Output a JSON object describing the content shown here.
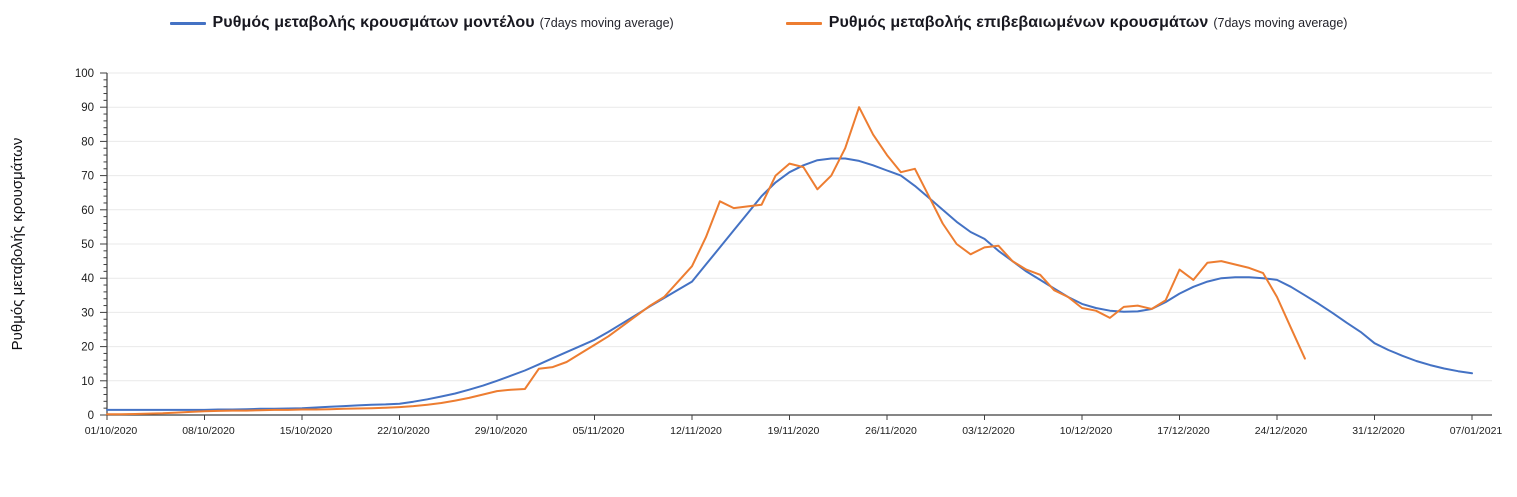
{
  "page": {
    "background": "#ffffff"
  },
  "legend": {
    "items": [
      {
        "label": "Ρυθμός μεταβολής κρουσμάτων μοντέλου",
        "suffix": "(7days moving average)",
        "color": "#4472C4"
      },
      {
        "label": "Ρυθμός μεταβολής επιβεβαιωμένων κρουσμάτων",
        "suffix": "(7days moving average)",
        "color": "#ED7D31"
      }
    ]
  },
  "chart_data": {
    "type": "line",
    "title": "",
    "xlabel": "",
    "ylabel": "Ρυθμός μεταβολής κρουσμάτων",
    "ylim": [
      0,
      100
    ],
    "y_major_step": 10,
    "y_minor_step": 2,
    "grid": "horizontal-major-only",
    "legend_position": "top-center",
    "y_tick_labels": [
      "0",
      "10",
      "20",
      "30",
      "40",
      "50",
      "60",
      "70",
      "80",
      "90",
      "100"
    ],
    "x_tick_labels": [
      "01/10/2020",
      "08/10/2020",
      "15/10/2020",
      "22/10/2020",
      "29/10/2020",
      "05/11/2020",
      "12/11/2020",
      "19/11/2020",
      "26/11/2020",
      "03/12/2020",
      "10/12/2020",
      "17/12/2020",
      "24/12/2020",
      "31/12/2020",
      "07/01/2021"
    ],
    "x_unit": "days",
    "x_start_date": "01/10/2020",
    "x_end_date": "07/01/2021",
    "x_total_days": 98,
    "colors": {
      "model": "#4472C4",
      "confirmed": "#ED7D31",
      "gridline": "#E9E9E9",
      "axis": "#3f3f3f"
    },
    "series": [
      {
        "name": "Ρυθμός μεταβολής κρουσμάτων μοντέλου (7days moving average)",
        "color": "#4472C4",
        "start_date": "01/10/2020",
        "values": [
          1.5,
          1.5,
          1.5,
          1.5,
          1.5,
          1.5,
          1.5,
          1.5,
          1.6,
          1.6,
          1.7,
          1.8,
          1.8,
          1.9,
          2.0,
          2.2,
          2.4,
          2.6,
          2.8,
          3.0,
          3.1,
          3.3,
          3.9,
          4.6,
          5.4,
          6.3,
          7.4,
          8.6,
          10,
          11.5,
          13,
          14.8,
          16.6,
          18.4,
          20.2,
          22,
          24.3,
          26.8,
          29.3,
          31.8,
          34.2,
          36.6,
          39,
          44,
          49,
          54,
          59,
          64,
          68,
          71,
          73,
          74.5,
          75,
          75,
          74.3,
          73,
          71.5,
          70,
          67,
          63.5,
          60,
          56.5,
          53.5,
          51.5,
          48,
          45,
          42,
          39.5,
          37,
          34.5,
          32.5,
          31.3,
          30.5,
          30.2,
          30.3,
          31,
          33,
          35.5,
          37.5,
          39,
          40,
          40.3,
          40.3,
          40,
          39.5,
          37.5,
          35,
          32.5,
          29.8,
          27,
          24.3,
          21,
          19,
          17.3,
          15.8,
          14.6,
          13.6,
          12.8,
          12.2
        ]
      },
      {
        "name": "Ρυθμός μεταβολής επιβεβαιωμένων κρουσμάτων (7days moving average)",
        "color": "#ED7D31",
        "start_date": "01/10/2020",
        "end_date": "26/12/2020",
        "values": [
          0.2,
          0.2,
          0.3,
          0.4,
          0.5,
          0.7,
          0.9,
          1.1,
          1.2,
          1.3,
          1.3,
          1.4,
          1.5,
          1.5,
          1.6,
          1.6,
          1.7,
          1.8,
          1.9,
          2.0,
          2.1,
          2.3,
          2.6,
          3.0,
          3.5,
          4.2,
          5.0,
          6.0,
          7.0,
          7.4,
          7.6,
          13.5,
          14,
          15.5,
          18,
          20.5,
          23,
          26,
          29,
          32,
          34.5,
          39,
          43.5,
          52,
          62.5,
          60.5,
          61,
          61.5,
          70,
          73.5,
          72.5,
          66,
          70,
          78,
          90,
          82,
          76,
          71,
          72,
          64,
          56,
          50,
          47,
          49,
          49.5,
          45,
          42.5,
          41,
          36.5,
          34.5,
          31.3,
          30.5,
          28.4,
          31.6,
          32,
          31,
          33.5,
          42.5,
          39.5,
          44.5,
          45,
          44,
          43,
          41.5,
          34.5,
          25.5,
          16.5
        ]
      }
    ]
  }
}
